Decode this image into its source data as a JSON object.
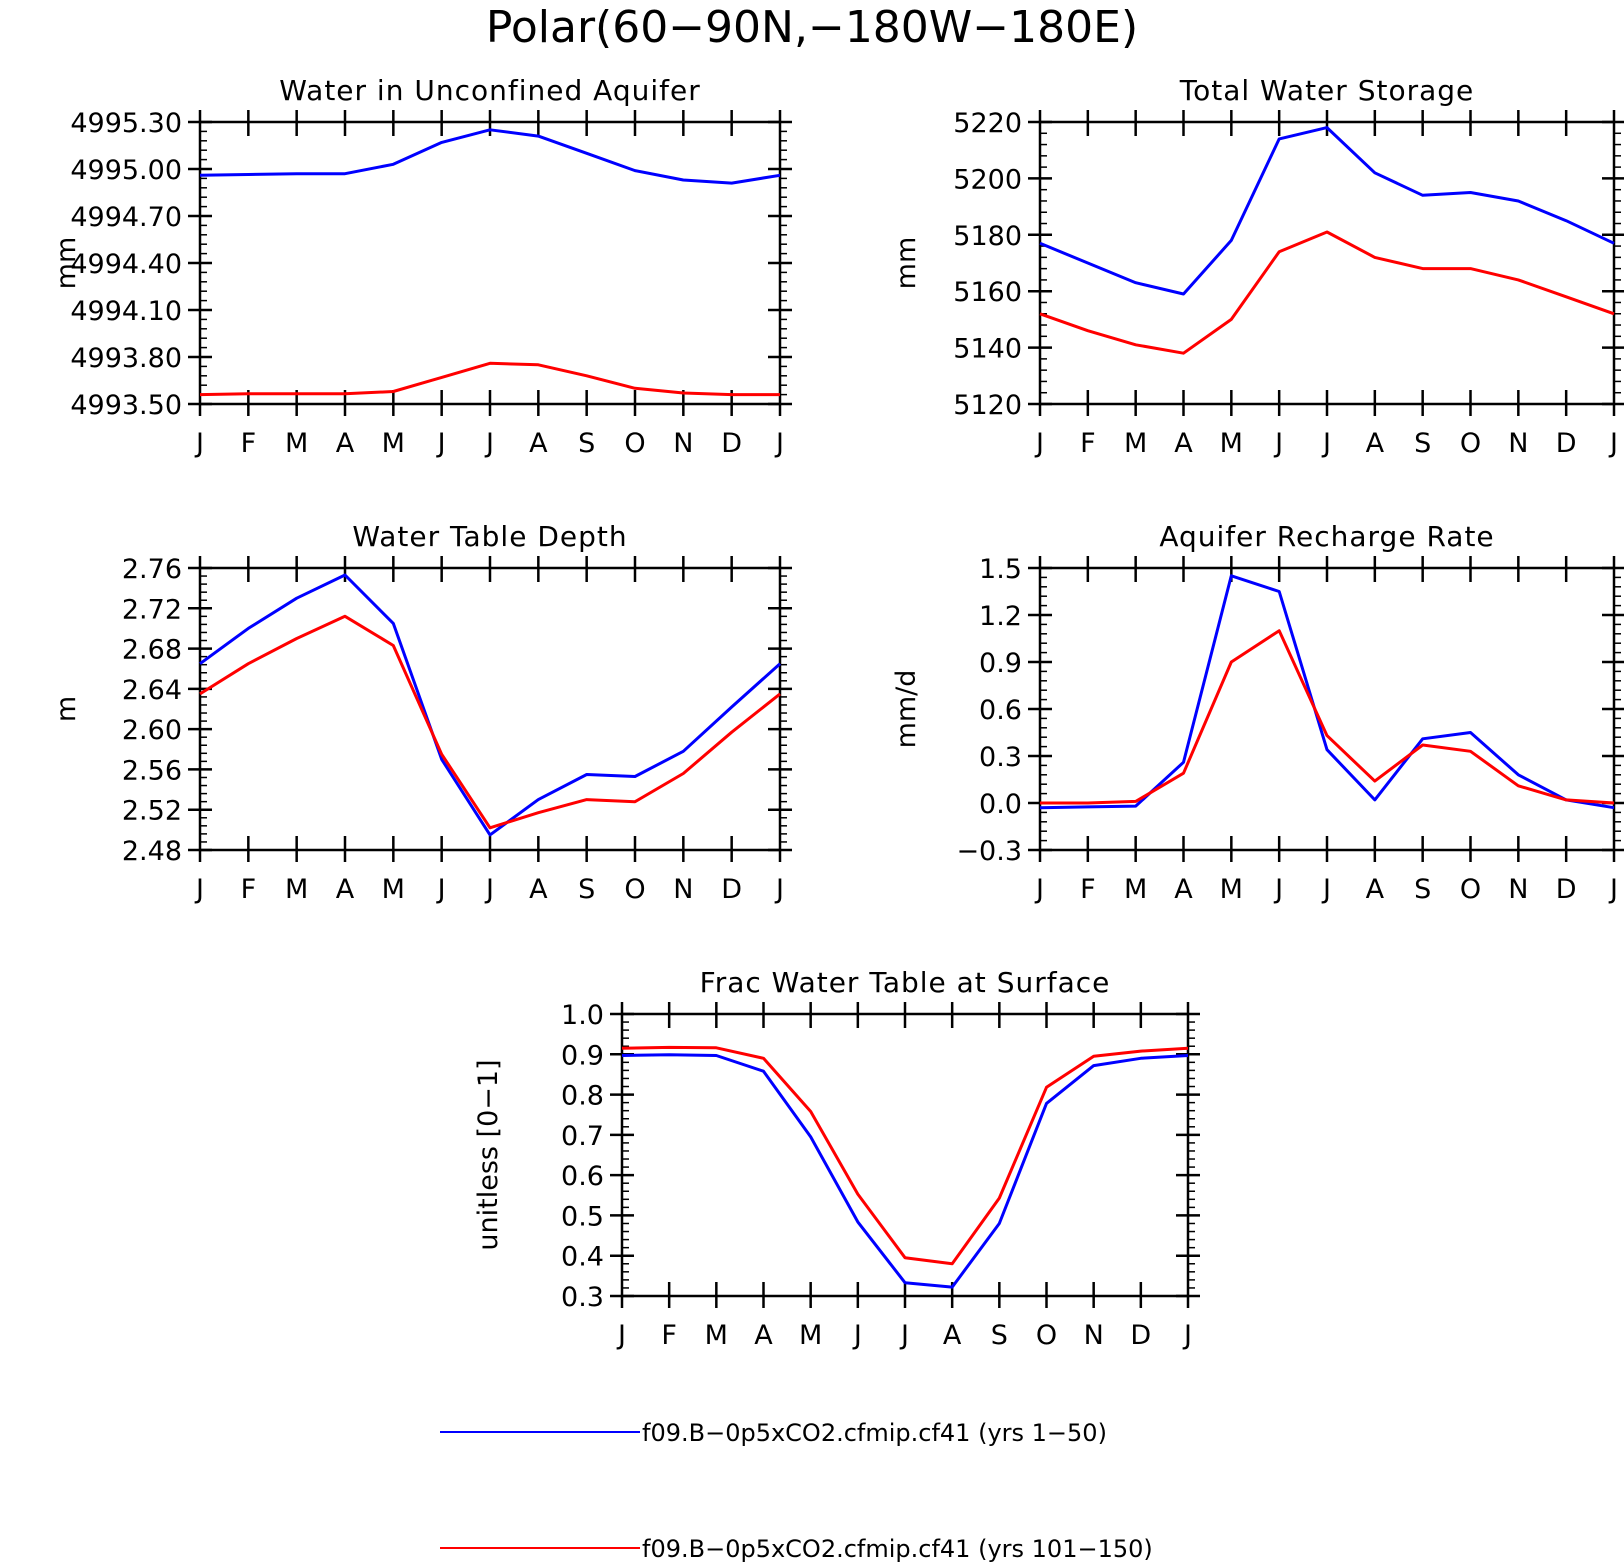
{
  "figure": {
    "title": "Polar(60−90N,−180W−180E)"
  },
  "colors": {
    "series1": "#0000ff",
    "series2": "#ff0000",
    "axes": "#000000"
  },
  "legend": [
    {
      "label": "f09.B−0p5xCO2.cfmip.cf41 (yrs 1−50)",
      "color": "#0000ff"
    },
    {
      "label": "f09.B−0p5xCO2.cfmip.cf41 (yrs 101−150)",
      "color": "#ff0000"
    }
  ],
  "chart_data": [
    {
      "type": "line",
      "title": "Water in Unconfined Aquifer",
      "ylabel": "mm",
      "categories": [
        "J",
        "F",
        "M",
        "A",
        "M",
        "J",
        "J",
        "A",
        "S",
        "O",
        "N",
        "D",
        "J"
      ],
      "ylim": [
        4993.5,
        4995.3
      ],
      "yticks": [
        "4995.30",
        "4995.00",
        "4994.70",
        "4994.40",
        "4994.10",
        "4993.80",
        "4993.50"
      ],
      "series": [
        {
          "color": "#0000ff",
          "values": [
            4994.96,
            4994.965,
            4994.97,
            4994.97,
            4995.03,
            4995.17,
            4995.25,
            4995.21,
            4995.1,
            4994.99,
            4994.93,
            4994.91,
            4994.96
          ]
        },
        {
          "color": "#ff0000",
          "values": [
            4993.56,
            4993.565,
            4993.565,
            4993.565,
            4993.58,
            4993.67,
            4993.76,
            4993.75,
            4993.68,
            4993.6,
            4993.57,
            4993.56,
            4993.56
          ]
        }
      ]
    },
    {
      "type": "line",
      "title": "Total Water Storage",
      "ylabel": "mm",
      "categories": [
        "J",
        "F",
        "M",
        "A",
        "M",
        "J",
        "J",
        "A",
        "S",
        "O",
        "N",
        "D",
        "J"
      ],
      "ylim": [
        5120,
        5220
      ],
      "yticks": [
        "5220",
        "5200",
        "5180",
        "5160",
        "5140",
        "5120"
      ],
      "series": [
        {
          "color": "#0000ff",
          "values": [
            5177,
            5170,
            5163,
            5159,
            5178,
            5214,
            5218,
            5202,
            5194,
            5195,
            5192,
            5185,
            5177
          ]
        },
        {
          "color": "#ff0000",
          "values": [
            5152,
            5146,
            5141,
            5138,
            5150,
            5174,
            5181,
            5172,
            5168,
            5168,
            5164,
            5158,
            5152
          ]
        }
      ]
    },
    {
      "type": "line",
      "title": "Water Table Depth",
      "ylabel": "m",
      "categories": [
        "J",
        "F",
        "M",
        "A",
        "M",
        "J",
        "J",
        "A",
        "S",
        "O",
        "N",
        "D",
        "J"
      ],
      "ylim": [
        2.48,
        2.76
      ],
      "yticks": [
        "2.76",
        "2.72",
        "2.68",
        "2.64",
        "2.60",
        "2.56",
        "2.52",
        "2.48"
      ],
      "series": [
        {
          "color": "#0000ff",
          "values": [
            2.665,
            2.7,
            2.73,
            2.753,
            2.705,
            2.57,
            2.495,
            2.53,
            2.555,
            2.553,
            2.578,
            2.622,
            2.665
          ]
        },
        {
          "color": "#ff0000",
          "values": [
            2.635,
            2.665,
            2.69,
            2.712,
            2.683,
            2.575,
            2.502,
            2.517,
            2.53,
            2.528,
            2.556,
            2.597,
            2.635
          ]
        }
      ]
    },
    {
      "type": "line",
      "title": "Aquifer Recharge Rate",
      "ylabel": "mm/d",
      "categories": [
        "J",
        "F",
        "M",
        "A",
        "M",
        "J",
        "J",
        "A",
        "S",
        "O",
        "N",
        "D",
        "J"
      ],
      "ylim": [
        -0.3,
        1.5
      ],
      "yticks": [
        "1.5",
        "1.2",
        "0.9",
        "0.6",
        "0.3",
        "0.0",
        "−0.3"
      ],
      "series": [
        {
          "color": "#0000ff",
          "values": [
            -0.03,
            -0.025,
            -0.02,
            0.26,
            1.45,
            1.35,
            0.34,
            0.02,
            0.41,
            0.45,
            0.18,
            0.02,
            -0.03
          ]
        },
        {
          "color": "#ff0000",
          "values": [
            0.0,
            0.0,
            0.01,
            0.19,
            0.9,
            1.1,
            0.43,
            0.14,
            0.37,
            0.33,
            0.11,
            0.02,
            0.0
          ]
        }
      ]
    },
    {
      "type": "line",
      "title": "Frac Water Table at Surface",
      "ylabel": "unitless [0−1]",
      "categories": [
        "J",
        "F",
        "M",
        "A",
        "M",
        "J",
        "J",
        "A",
        "S",
        "O",
        "N",
        "D",
        "J"
      ],
      "ylim": [
        0.3,
        1.0
      ],
      "yticks": [
        "1.0",
        "0.9",
        "0.8",
        "0.7",
        "0.6",
        "0.5",
        "0.4",
        "0.3"
      ],
      "series": [
        {
          "color": "#0000ff",
          "values": [
            0.897,
            0.899,
            0.897,
            0.858,
            0.695,
            0.484,
            0.333,
            0.322,
            0.48,
            0.778,
            0.872,
            0.89,
            0.897
          ]
        },
        {
          "color": "#ff0000",
          "values": [
            0.915,
            0.917,
            0.916,
            0.89,
            0.758,
            0.553,
            0.395,
            0.38,
            0.543,
            0.818,
            0.895,
            0.908,
            0.915
          ]
        }
      ]
    }
  ]
}
